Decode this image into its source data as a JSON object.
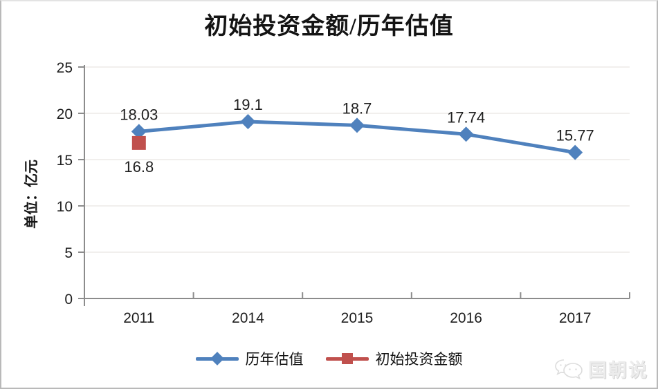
{
  "chart_data": {
    "type": "line",
    "title": "初始投资金额/历年估值",
    "ylabel": "单位：亿元",
    "xlabel": "",
    "categories": [
      "2011",
      "2014",
      "2015",
      "2016",
      "2017"
    ],
    "series": [
      {
        "name": "历年估值",
        "type": "line",
        "marker": "diamond",
        "color": "#4F81BD",
        "label_position": "above",
        "values": [
          18.03,
          19.1,
          18.7,
          17.74,
          15.77
        ],
        "labels": [
          "18.03",
          "19.1",
          "18.7",
          "17.74",
          "15.77"
        ]
      },
      {
        "name": "初始投资金额",
        "type": "points",
        "marker": "square",
        "color": "#C0504D",
        "label_position": "below",
        "values": [
          16.8,
          null,
          null,
          null,
          null
        ],
        "labels": [
          "16.8",
          null,
          null,
          null,
          null
        ]
      }
    ],
    "ylim": [
      0,
      25
    ],
    "ytick_step": 5,
    "yticks": [
      0,
      5,
      10,
      15,
      20,
      25
    ],
    "grid": true,
    "legend_position": "bottom"
  },
  "colors": {
    "axis": "#8C8C8C",
    "gridline": "#F1EFED",
    "text": "#1F1F1F",
    "series_blue": "#4F81BD",
    "series_red": "#C0504D",
    "watermark": "#ECECEC"
  },
  "watermark": {
    "text": "国朝说",
    "icon": "chat-bubbles"
  }
}
